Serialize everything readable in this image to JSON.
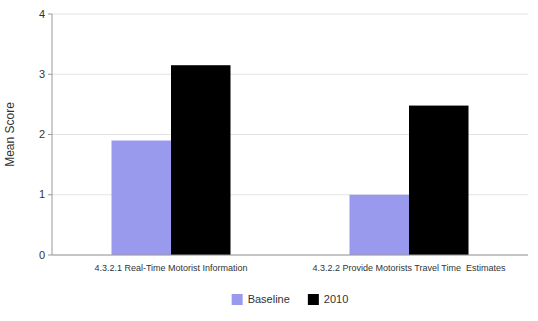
{
  "chart_data": {
    "type": "bar",
    "categories": [
      "4.3.2.1 Real-Time Motorist Information",
      "4.3.2.2 Provide Motorists Travel Time  Estimates"
    ],
    "series": [
      {
        "name": "Baseline",
        "color": "#9999ee",
        "values": [
          1.9,
          1.0
        ]
      },
      {
        "name": "2010",
        "color": "#000000",
        "values": [
          3.15,
          2.48
        ]
      }
    ],
    "ylabel": "Mean Score",
    "ylim": [
      0,
      4
    ],
    "yticks": [
      0,
      1,
      2,
      3,
      4
    ],
    "grid": true,
    "legend": "bottom"
  }
}
